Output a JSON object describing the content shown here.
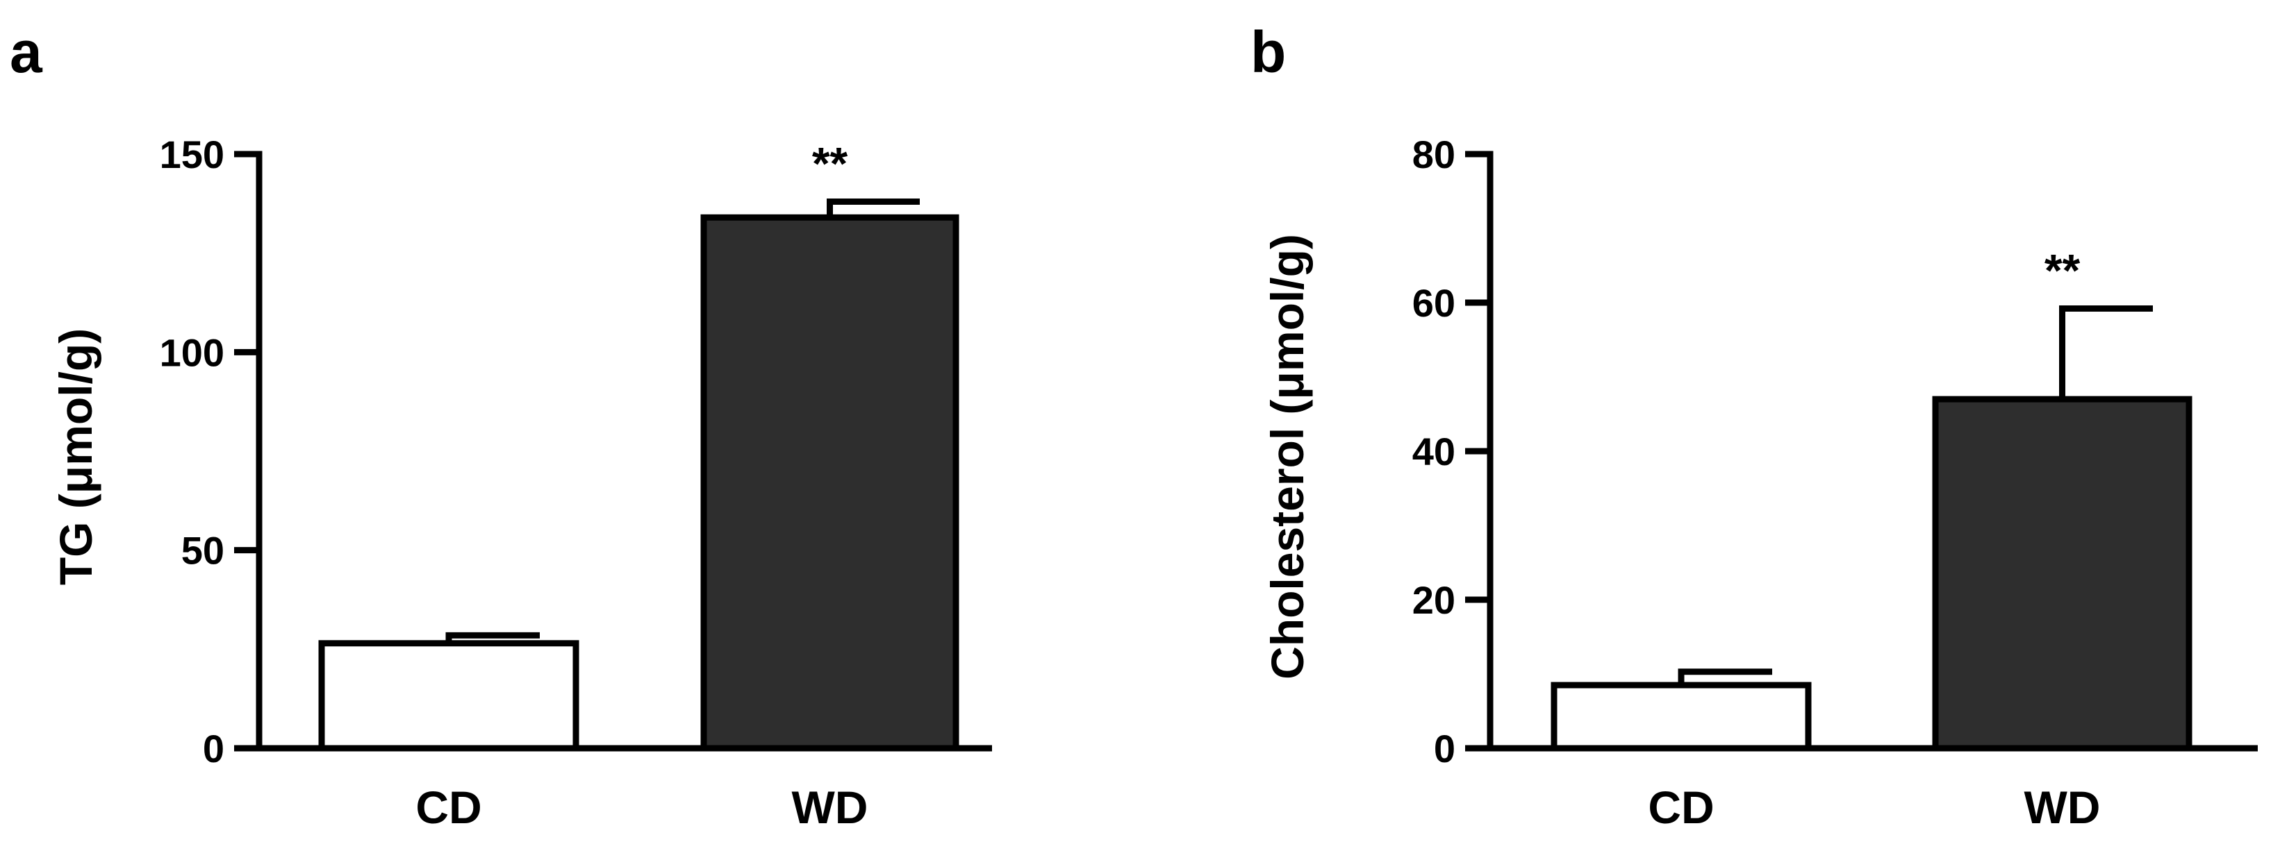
{
  "chart_data": [
    {
      "panel": "a",
      "type": "bar",
      "categories": [
        "CD",
        "WD"
      ],
      "values": [
        26.5,
        134
      ],
      "errors": [
        2,
        4
      ],
      "annotations": [
        "",
        "**"
      ],
      "ylabel": "TG (μmol/g)",
      "xlabel": "",
      "ylim": [
        0,
        150
      ],
      "yticks": [
        0,
        50,
        100,
        150
      ],
      "bar_colors": [
        "#ffffff",
        "#2e2e2e"
      ],
      "grid": false
    },
    {
      "panel": "b",
      "type": "bar",
      "categories": [
        "CD",
        "WD"
      ],
      "values": [
        8.5,
        47
      ],
      "errors": [
        1.8,
        12.2
      ],
      "annotations": [
        "",
        "**"
      ],
      "ylabel": "Cholesterol (μmol/g)",
      "xlabel": "",
      "ylim": [
        0,
        80
      ],
      "yticks": [
        0,
        20,
        40,
        60,
        80
      ],
      "bar_colors": [
        "#ffffff",
        "#2e2e2e"
      ],
      "grid": false
    }
  ]
}
